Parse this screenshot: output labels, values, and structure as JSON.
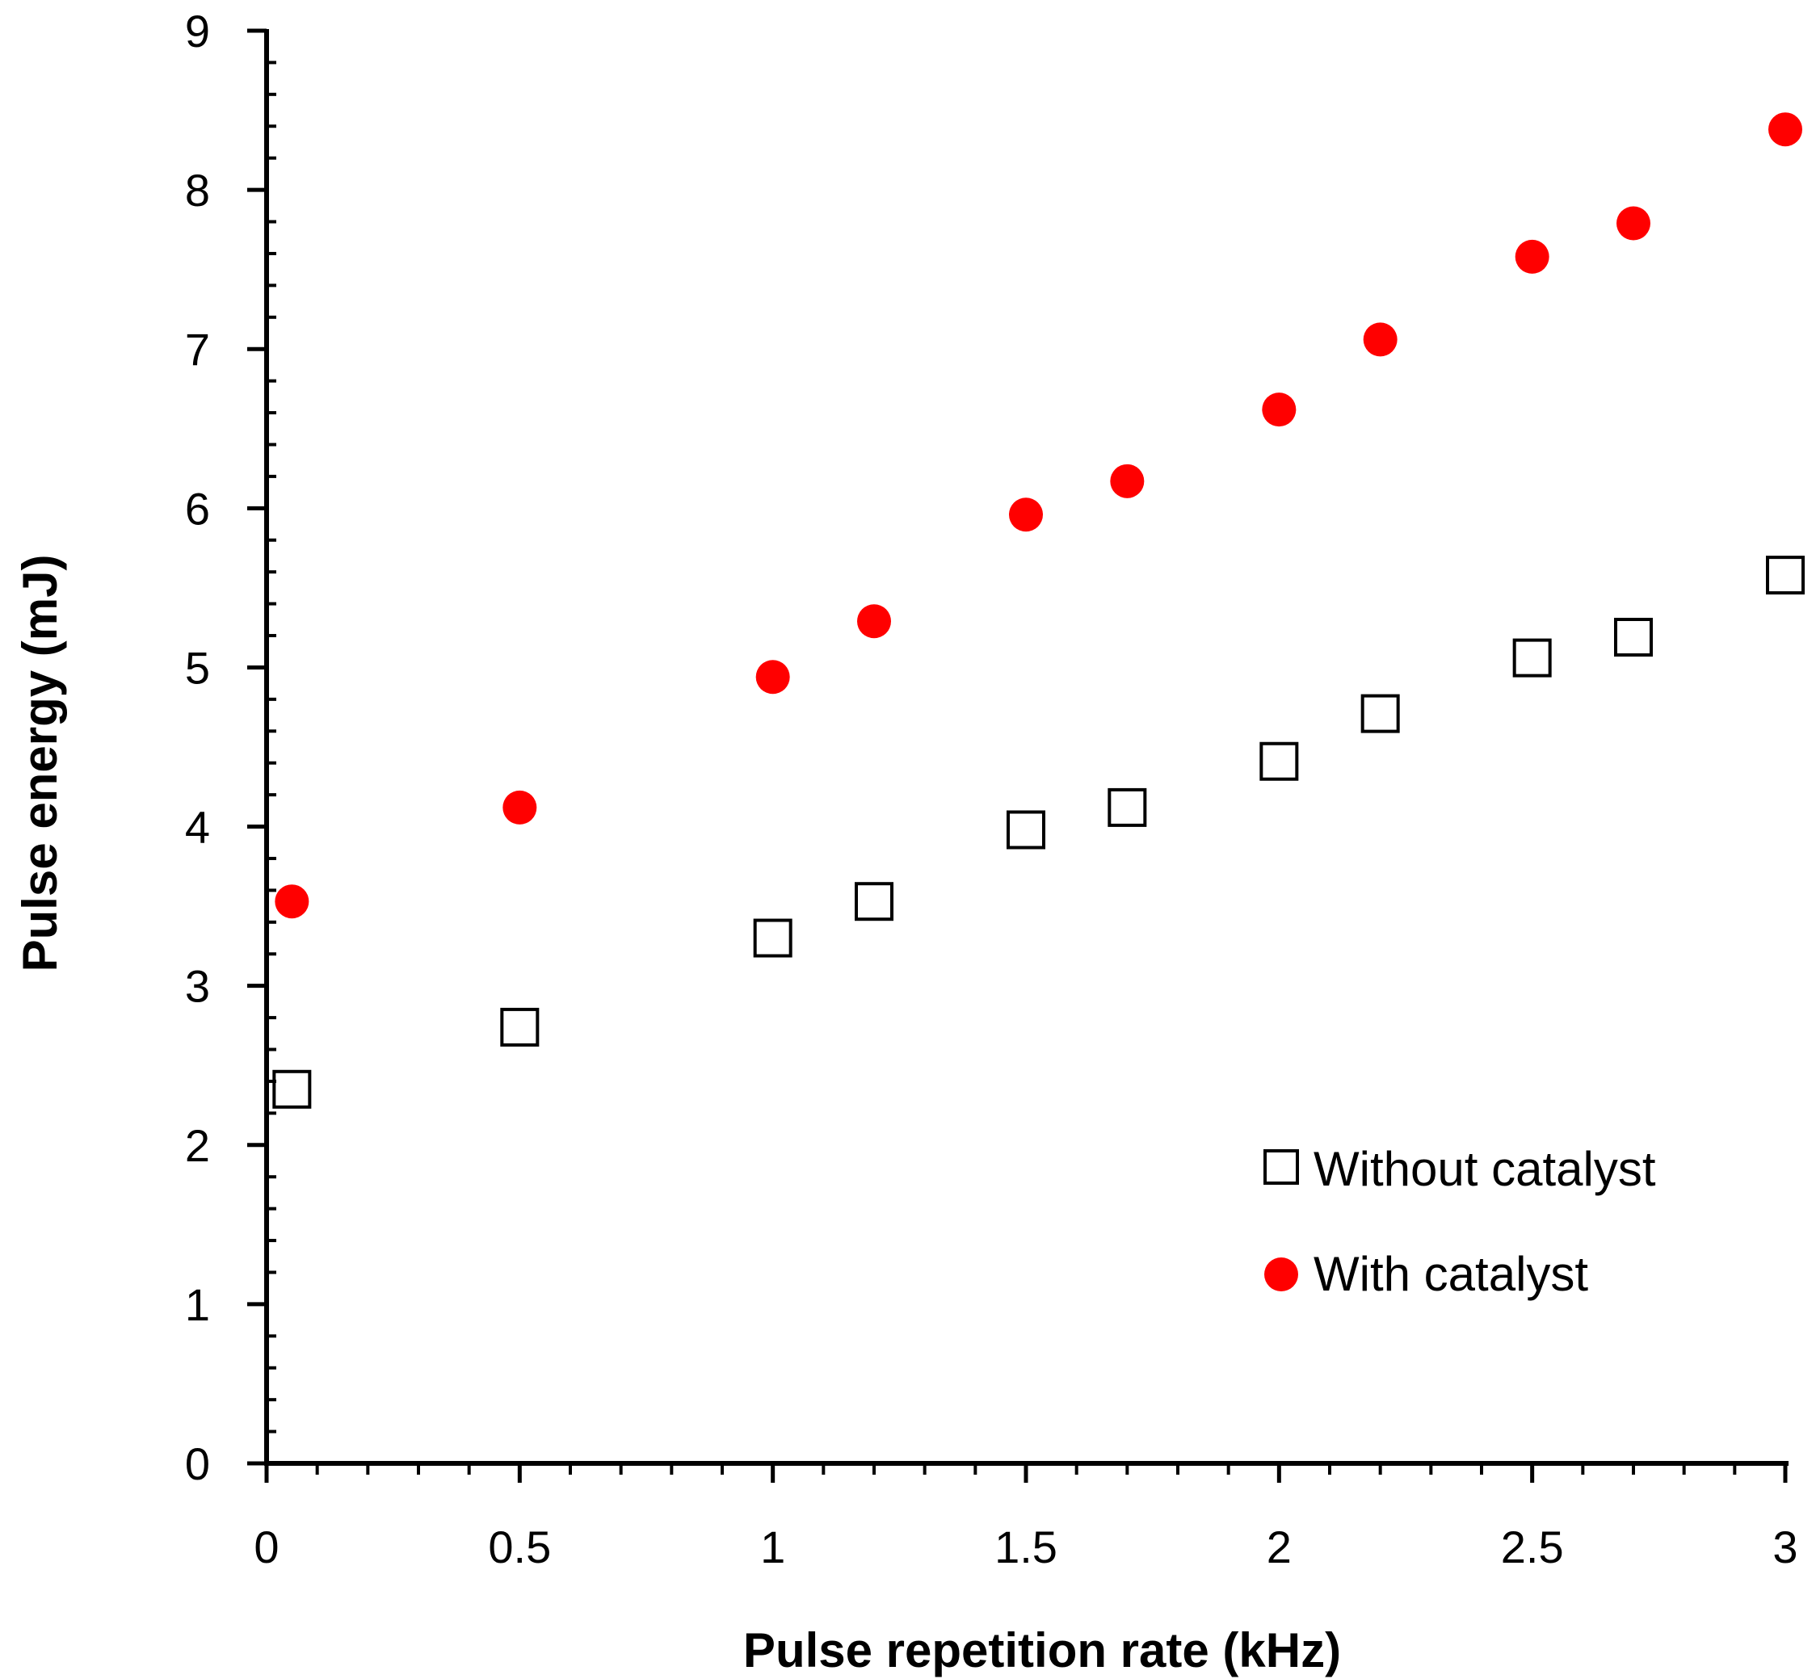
{
  "chart_data": {
    "type": "scatter",
    "title": "",
    "xlabel": "Pulse repetition rate (kHz)",
    "ylabel": "Pulse energy (mJ)",
    "xlim": [
      0,
      3
    ],
    "ylim": [
      0,
      9
    ],
    "x_ticks": [
      0,
      0.5,
      1,
      1.5,
      2,
      2.5,
      3
    ],
    "y_ticks": [
      0,
      1,
      2,
      3,
      4,
      5,
      6,
      7,
      8,
      9
    ],
    "grid": false,
    "legend_position": "bottom-right",
    "series": [
      {
        "name": "Without catalyst",
        "marker": "open-square",
        "color": "#000000",
        "x": [
          0.05,
          0.5,
          1.0,
          1.2,
          1.5,
          1.7,
          2.0,
          2.2,
          2.5,
          2.7,
          3.0
        ],
        "y": [
          2.35,
          2.74,
          3.3,
          3.53,
          3.98,
          4.12,
          4.41,
          4.71,
          5.06,
          5.19,
          5.58
        ]
      },
      {
        "name": "With catalyst",
        "marker": "filled-circle",
        "color": "#ff0000",
        "x": [
          0.05,
          0.5,
          1.0,
          1.2,
          1.5,
          1.7,
          2.0,
          2.2,
          2.5,
          2.7,
          3.0
        ],
        "y": [
          3.53,
          4.12,
          4.94,
          5.29,
          5.96,
          6.17,
          6.62,
          7.06,
          7.58,
          7.79,
          8.38
        ]
      }
    ]
  }
}
